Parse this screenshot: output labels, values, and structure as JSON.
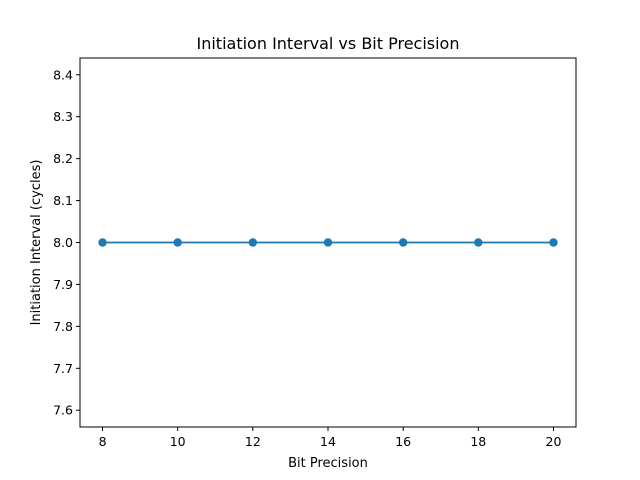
{
  "chart_data": {
    "type": "line",
    "title": "Initiation Interval vs Bit Precision",
    "xlabel": "Bit Precision",
    "ylabel": "Initiation Interval (cycles)",
    "x": [
      8,
      10,
      12,
      14,
      16,
      18,
      20
    ],
    "series": [
      {
        "values": [
          8.0,
          8.0,
          8.0,
          8.0,
          8.0,
          8.0,
          8.0
        ],
        "color": "#1f77b4",
        "marker": "circle"
      }
    ],
    "xlim": [
      7.4,
      20.6
    ],
    "ylim": [
      7.56,
      8.44
    ],
    "xticks": [
      8,
      10,
      12,
      14,
      16,
      18,
      20
    ],
    "yticks": [
      7.6,
      7.7,
      7.8,
      7.9,
      8.0,
      8.1,
      8.2,
      8.3,
      8.4
    ],
    "ytick_labels": [
      "7.6",
      "7.7",
      "7.8",
      "7.9",
      "8.0",
      "8.1",
      "8.2",
      "8.3",
      "8.4"
    ],
    "grid": false,
    "legend": false
  }
}
